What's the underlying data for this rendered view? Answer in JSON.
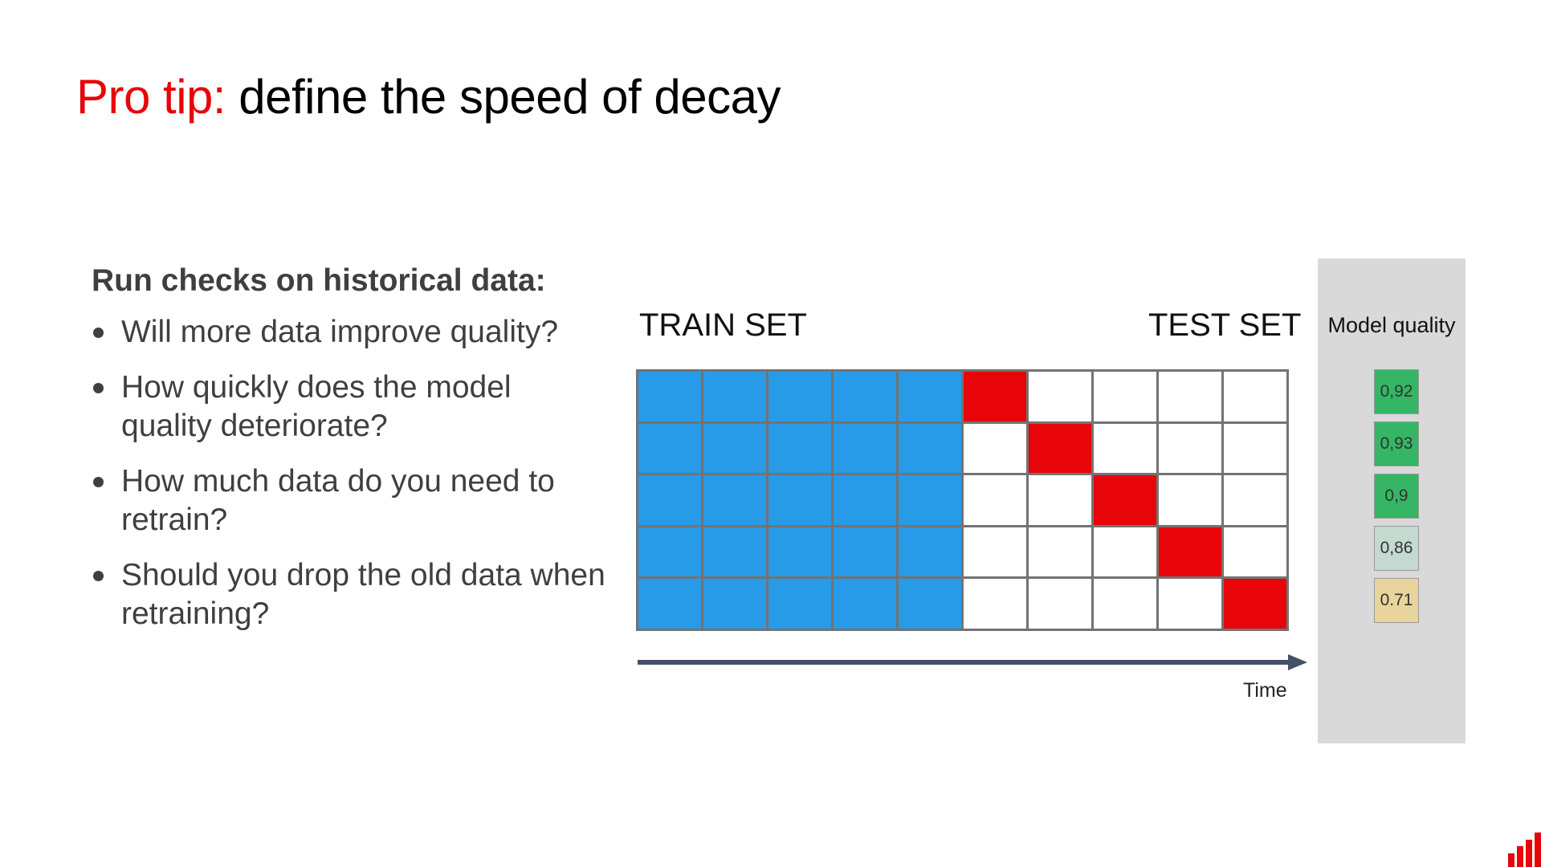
{
  "slide": {
    "title_accent": "Pro tip:",
    "title_rest": "define the speed of decay"
  },
  "checks": {
    "heading": "Run checks on historical data:",
    "items": [
      "Will more data improve quality?",
      "How quickly does the model quality deteriorate?",
      "How much data do you need to retrain?",
      "Should you drop the old data when retraining?"
    ]
  },
  "diagram": {
    "train_label": "TRAIN SET",
    "test_label": "TEST SET",
    "time_label": "Time",
    "columns": 10,
    "rows": [
      {
        "train_cells": 5,
        "test_cell": 6
      },
      {
        "train_cells": 5,
        "test_cell": 7
      },
      {
        "train_cells": 5,
        "test_cell": 8
      },
      {
        "train_cells": 5,
        "test_cell": 9
      },
      {
        "train_cells": 5,
        "test_cell": 10
      }
    ],
    "colors": {
      "train": "#279be8",
      "test": "#e8050a",
      "empty": "#ffffff",
      "gridline": "#737373",
      "axis": "#445269"
    }
  },
  "model_quality": {
    "title": "Model quality",
    "scores": [
      {
        "value": "0,92",
        "color": "#35b665"
      },
      {
        "value": "0,93",
        "color": "#35b665"
      },
      {
        "value": "0,9",
        "color": "#35b665"
      },
      {
        "value": "0,86",
        "color": "#c4d9d0"
      },
      {
        "value": "0.71",
        "color": "#e7d59c"
      }
    ]
  },
  "brand": {
    "logo_icon": "bar-chart-logo-icon",
    "logo_color": "#e8050a"
  }
}
